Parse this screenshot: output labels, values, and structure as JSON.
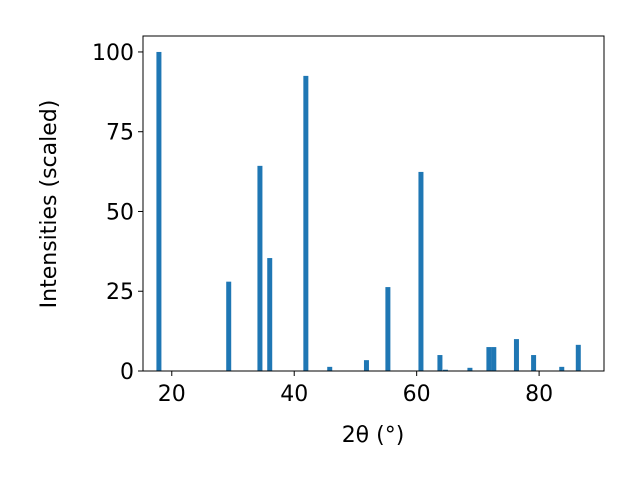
{
  "chart_data": {
    "type": "bar",
    "xlabel": "2θ (°)",
    "ylabel": "Intensities (scaled)",
    "x": [
      17.9,
      29.3,
      34.4,
      36.0,
      41.9,
      45.8,
      51.8,
      55.3,
      60.7,
      63.8,
      64.7,
      68.7,
      71.8,
      72.6,
      76.3,
      79.1,
      83.7,
      86.4
    ],
    "values": [
      100,
      28,
      64.3,
      35.4,
      92.5,
      1.3,
      3.4,
      26.3,
      62.4,
      5.0,
      0.4,
      1.0,
      7.5,
      7.5,
      10,
      5.0,
      1.3,
      8.2
    ],
    "color": "#1f77b4",
    "xlim": [
      15.3,
      90.6
    ],
    "xticks": [
      20,
      40,
      60,
      80
    ],
    "ylim": [
      0,
      105
    ],
    "yticks": [
      0,
      25,
      50,
      75,
      100
    ],
    "grid": false
  }
}
